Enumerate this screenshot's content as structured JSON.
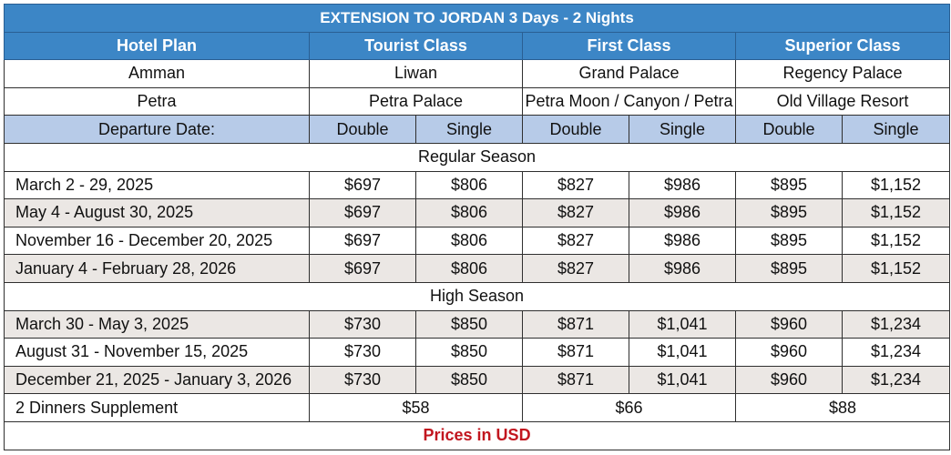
{
  "title": "EXTENSION TO JORDAN  3 Days - 2 Nights",
  "header": {
    "hotel_plan": "Hotel Plan",
    "tourist": "Tourist Class",
    "first": "First Class",
    "superior": "Superior Class"
  },
  "hotels": [
    {
      "city": "Amman",
      "tourist": "Liwan",
      "first": "Grand Palace",
      "superior": "Regency Palace"
    },
    {
      "city": "Petra",
      "tourist": "Petra Palace",
      "first": "Petra Moon / Canyon / Petra",
      "superior": "Old Village Resort"
    }
  ],
  "subheader": {
    "departure": "Departure Date:",
    "double": "Double",
    "single": "Single"
  },
  "regular": {
    "label": "Regular Season",
    "rows": [
      {
        "date": "March 2 - 29, 2025",
        "prices": [
          "$697",
          "$806",
          "$827",
          "$986",
          "$895",
          "$1,152"
        ]
      },
      {
        "date": "May 4 - August 30, 2025",
        "prices": [
          "$697",
          "$806",
          "$827",
          "$986",
          "$895",
          "$1,152"
        ]
      },
      {
        "date": "November 16 - December 20, 2025",
        "prices": [
          "$697",
          "$806",
          "$827",
          "$986",
          "$895",
          "$1,152"
        ]
      },
      {
        "date": "January 4 - February 28, 2026",
        "prices": [
          "$697",
          "$806",
          "$827",
          "$986",
          "$895",
          "$1,152"
        ]
      }
    ]
  },
  "high": {
    "label": "High Season",
    "rows": [
      {
        "date": "March 30 - May 3, 2025",
        "prices": [
          "$730",
          "$850",
          "$871",
          "$1,041",
          "$960",
          "$1,234"
        ]
      },
      {
        "date": "August 31 - November 15, 2025",
        "prices": [
          "$730",
          "$850",
          "$871",
          "$1,041",
          "$960",
          "$1,234"
        ]
      },
      {
        "date": "December 21, 2025 - January 3, 2026",
        "prices": [
          "$730",
          "$850",
          "$871",
          "$1,041",
          "$960",
          "$1,234"
        ]
      }
    ]
  },
  "supplement": {
    "label": "2 Dinners Supplement",
    "tourist": "$58",
    "first": "$66",
    "superior": "$88"
  },
  "footer": "Prices in USD"
}
